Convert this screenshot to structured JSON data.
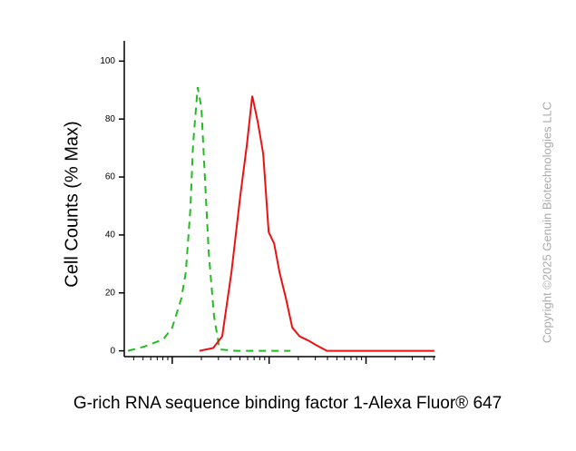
{
  "chart_data": {
    "type": "line",
    "ylabel": "Cell Counts (% Max)",
    "xlabel": "G-rich RNA sequence binding factor 1-Alexa Fluor® 647",
    "watermark": "Copyright ©2025 Genuin Biotechnologies LLC",
    "log_x": true,
    "xlim": [
      32,
      52000
    ],
    "xticks": [
      100,
      1000,
      10000
    ],
    "ylim": [
      -2,
      107
    ],
    "yticks": [
      0,
      20,
      40,
      60,
      80,
      100
    ],
    "series": [
      {
        "color": "#22bb22",
        "dashed": true,
        "x": [
          35,
          52,
          81,
          100,
          124,
          138,
          154,
          164,
          183,
          200,
          218,
          238,
          270,
          308,
          454,
          1079,
          1663
        ],
        "values": [
          0,
          1.5,
          4,
          8,
          18,
          27,
          49,
          71,
          91,
          84,
          59,
          34,
          12,
          0.5,
          0,
          0,
          0
        ]
      },
      {
        "color": "#ee1111",
        "dashed": false,
        "x": [
          191,
          265,
          328,
          408,
          506,
          589,
          670,
          764,
          869,
          989,
          1127,
          1282,
          1493,
          1734,
          2065,
          2559,
          3048,
          3945,
          14450,
          50600
        ],
        "values": [
          0,
          1,
          5,
          27,
          54,
          71,
          88,
          79,
          68,
          41,
          37,
          27,
          18,
          8,
          5,
          3.5,
          2,
          0,
          0,
          0
        ]
      }
    ]
  }
}
